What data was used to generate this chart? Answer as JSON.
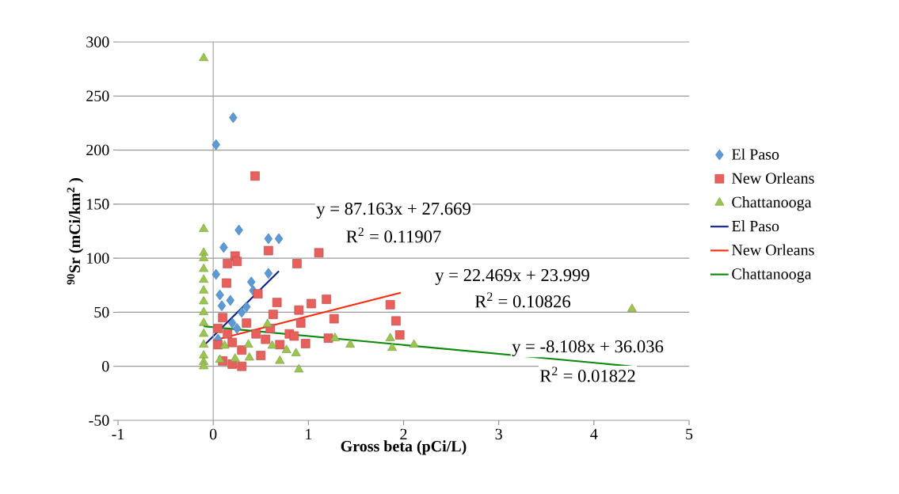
{
  "chart_data": {
    "type": "scatter",
    "xlabel": "Gross beta (pCi/L)",
    "ylabel": "$^{90}$Sr  (mCi/km$^{2}$ )",
    "xlim": [
      -1,
      5
    ],
    "xticks": [
      -1,
      0,
      1,
      2,
      3,
      4,
      5
    ],
    "ylim": [
      -50,
      300
    ],
    "yticks": [
      -50,
      0,
      50,
      100,
      150,
      200,
      250,
      300
    ],
    "grid": "y",
    "legend": "right",
    "ref_lines": [
      {
        "axis": "x",
        "value": 0,
        "color": "#a6a6a6"
      }
    ],
    "annotations": [
      "y = 87.163x + 27.669",
      "R$^{2}$ = 0.11907",
      "y = 22.469x + 23.999",
      "R$^{2}$ = 0.10826",
      "y = -8.108x + 36.036",
      "R$^{2}$ = 0.01822"
    ],
    "series": [
      {
        "name": "El Paso",
        "marker": "diamond",
        "color": "#5b9bd5",
        "x": [
          0.21,
          0.03,
          0.27,
          0.58,
          0.69,
          0.11,
          0.58,
          0.09,
          0.18,
          0.4,
          0.42,
          0.07,
          0.03,
          0.2,
          0.3,
          0.25,
          0.05,
          0.35
        ],
        "values": [
          230,
          205,
          126,
          118,
          118,
          110,
          86,
          56,
          61,
          78,
          70,
          66,
          85,
          40,
          50,
          35,
          25,
          55
        ]
      },
      {
        "name": "New Orleans",
        "marker": "square",
        "color": "#e8605c",
        "x": [
          0.44,
          0.23,
          0.25,
          0.58,
          0.88,
          1.11,
          0.15,
          0.14,
          0.47,
          1.86,
          1.92,
          1.96,
          1.19,
          1.27,
          1.03,
          0.9,
          0.92,
          1.21,
          0.97,
          0.67,
          0.63,
          0.05,
          0.15,
          0.2,
          0.3,
          0.1,
          0.2,
          0.3,
          0.35,
          0.45,
          0.55,
          0.6,
          0.7,
          0.8,
          0.85,
          0.5,
          0.1,
          0.05
        ],
        "values": [
          176,
          102,
          97,
          107,
          95,
          105,
          95,
          77,
          67,
          57,
          42,
          29,
          62,
          44,
          58,
          52,
          40,
          26,
          21,
          59,
          48,
          35,
          30,
          22,
          15,
          5,
          2,
          0,
          40,
          30,
          25,
          35,
          20,
          30,
          28,
          10,
          45,
          20
        ]
      },
      {
        "name": "Chattanooga",
        "marker": "triangle",
        "color": "#9bc550",
        "x": [
          -0.1,
          -0.1,
          -0.1,
          -0.1,
          -0.1,
          -0.1,
          -0.1,
          -0.1,
          -0.1,
          -0.1,
          -0.1,
          -0.1,
          -0.1,
          -0.1,
          -0.1,
          4.4,
          1.86,
          1.88,
          2.11,
          1.44,
          1.28,
          0.57,
          0.12,
          0.37,
          0.62,
          0.87,
          0.9,
          0.23,
          0.38,
          0.77,
          0.7,
          0.07
        ],
        "values": [
          285,
          127,
          105,
          100,
          90,
          80,
          70,
          60,
          50,
          40,
          30,
          20,
          10,
          4,
          0,
          53,
          26,
          17,
          20,
          20,
          26,
          39,
          19,
          20,
          19,
          12,
          -3,
          7,
          8,
          15,
          5,
          6
        ]
      },
      {
        "name": "El Paso",
        "type": "line",
        "marker": "none",
        "color": "#0c1f8f",
        "x": [
          -0.09,
          0.69
        ],
        "values": [
          20,
          88
        ]
      },
      {
        "name": "New Orleans",
        "type": "line",
        "marker": "none",
        "color": "#ff2a0a",
        "x": [
          0,
          1.97
        ],
        "values": [
          24,
          68
        ]
      },
      {
        "name": "Chattanooga",
        "type": "line",
        "marker": "none",
        "color": "#0b8a0b",
        "x": [
          -0.1,
          4.4
        ],
        "values": [
          37,
          0
        ]
      }
    ]
  }
}
